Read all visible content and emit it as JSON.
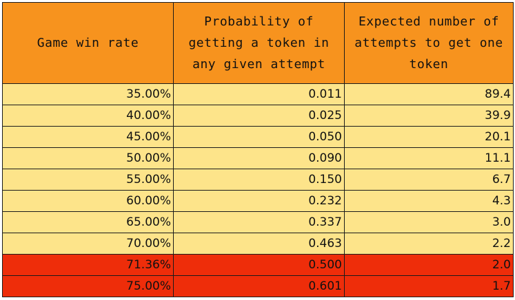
{
  "table": {
    "headers": [
      "Game win rate",
      "Probability of getting a token in any given attempt",
      "Expected number of attempts to get one token"
    ],
    "rows": [
      {
        "win_rate": "35.00%",
        "probability": "0.011",
        "attempts": "89.4",
        "highlight": false
      },
      {
        "win_rate": "40.00%",
        "probability": "0.025",
        "attempts": "39.9",
        "highlight": false
      },
      {
        "win_rate": "45.00%",
        "probability": "0.050",
        "attempts": "20.1",
        "highlight": false
      },
      {
        "win_rate": "50.00%",
        "probability": "0.090",
        "attempts": "11.1",
        "highlight": false
      },
      {
        "win_rate": "55.00%",
        "probability": "0.150",
        "attempts": "6.7",
        "highlight": false
      },
      {
        "win_rate": "60.00%",
        "probability": "0.232",
        "attempts": "4.3",
        "highlight": false
      },
      {
        "win_rate": "65.00%",
        "probability": "0.337",
        "attempts": "3.0",
        "highlight": false
      },
      {
        "win_rate": "70.00%",
        "probability": "0.463",
        "attempts": "2.2",
        "highlight": false
      },
      {
        "win_rate": "71.36%",
        "probability": "0.500",
        "attempts": "2.0",
        "highlight": true
      },
      {
        "win_rate": "75.00%",
        "probability": "0.601",
        "attempts": "1.7",
        "highlight": true
      }
    ]
  },
  "colors": {
    "header_bg": "#f7931e",
    "row_bg": "#fde48a",
    "highlight_bg": "#ee2d0a"
  }
}
